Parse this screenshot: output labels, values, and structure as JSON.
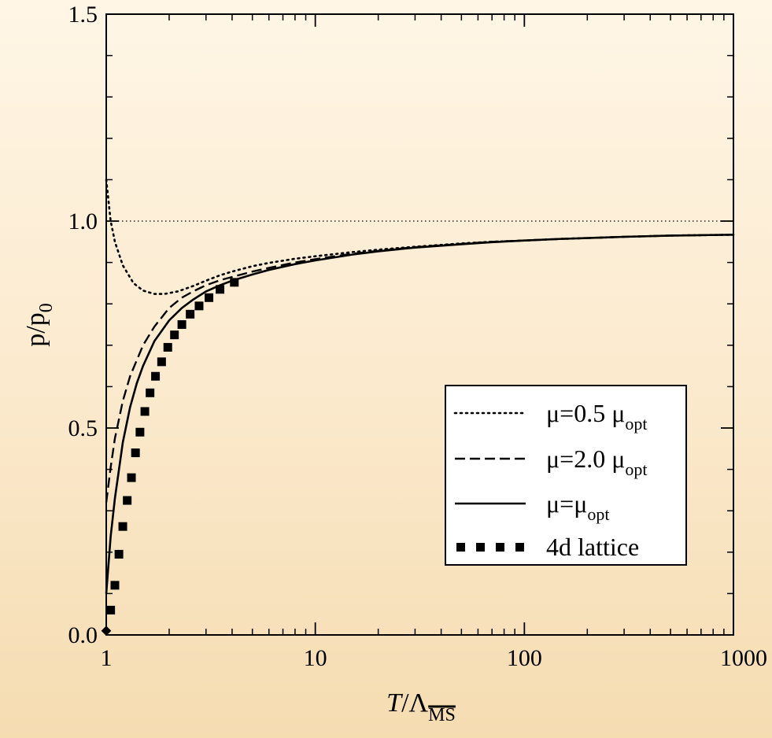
{
  "chart_data": {
    "type": "line",
    "xscale": "log",
    "xlim": [
      1,
      1000
    ],
    "ylim": [
      0.0,
      1.5
    ],
    "xticks": [
      1,
      10,
      100,
      1000
    ],
    "xtick_labels": [
      "1",
      "10",
      "100",
      "1000"
    ],
    "yticks": [
      0.0,
      0.5,
      1.0,
      1.5
    ],
    "ytick_labels": [
      "0.0",
      "0.5",
      "1.0",
      "1.5"
    ],
    "xlabel": {
      "main": "T",
      "sep": "/Λ",
      "sub": "MS"
    },
    "ylabel": {
      "main": "p/p",
      "sub": "0"
    },
    "reference_lines": [
      0.0,
      1.0
    ],
    "legend_position": "lower-right",
    "series": [
      {
        "name": "μ=0.5 μ",
        "name_sub": "opt",
        "style": "dotted",
        "x": [
          1.0,
          1.05,
          1.1,
          1.2,
          1.35,
          1.5,
          1.7,
          1.9,
          2.2,
          2.6,
          3.0,
          3.5,
          4.0,
          5.0,
          6.0,
          8.0,
          10,
          15,
          20,
          30,
          50,
          70,
          100,
          150,
          200,
          300,
          500,
          700,
          1000
        ],
        "y": [
          1.1,
          1.0,
          0.95,
          0.893,
          0.85,
          0.832,
          0.824,
          0.824,
          0.83,
          0.843,
          0.856,
          0.869,
          0.878,
          0.891,
          0.899,
          0.909,
          0.915,
          0.925,
          0.931,
          0.938,
          0.946,
          0.95,
          0.953,
          0.957,
          0.959,
          0.962,
          0.965,
          0.966,
          0.967
        ]
      },
      {
        "name": "μ=2.0 μ",
        "name_sub": "opt",
        "style": "dashed",
        "x": [
          1.0,
          1.05,
          1.1,
          1.2,
          1.3,
          1.5,
          1.7,
          2.0,
          2.3,
          2.6,
          3.0,
          3.5,
          4.0,
          5.0,
          6.0,
          8.0,
          10,
          15,
          20,
          30,
          50,
          70,
          100,
          150,
          200,
          300,
          500,
          700,
          1000
        ],
        "y": [
          0.32,
          0.405,
          0.475,
          0.565,
          0.625,
          0.7,
          0.745,
          0.79,
          0.815,
          0.83,
          0.845,
          0.857,
          0.865,
          0.878,
          0.887,
          0.9,
          0.908,
          0.921,
          0.928,
          0.937,
          0.945,
          0.95,
          0.953,
          0.957,
          0.959,
          0.962,
          0.965,
          0.966,
          0.967
        ]
      },
      {
        "name": "μ=μ",
        "name_sub": "opt",
        "style": "solid",
        "x": [
          1.0,
          1.05,
          1.1,
          1.2,
          1.3,
          1.4,
          1.5,
          1.7,
          2.0,
          2.3,
          2.6,
          3.0,
          3.5,
          4.0,
          5.0,
          6.0,
          8.0,
          10,
          15,
          20,
          30,
          50,
          70,
          100,
          150,
          200,
          300,
          500,
          700,
          1000
        ],
        "y": [
          0.1,
          0.238,
          0.33,
          0.465,
          0.55,
          0.608,
          0.65,
          0.71,
          0.76,
          0.79,
          0.81,
          0.83,
          0.845,
          0.856,
          0.871,
          0.882,
          0.896,
          0.905,
          0.919,
          0.927,
          0.936,
          0.944,
          0.949,
          0.953,
          0.957,
          0.959,
          0.962,
          0.965,
          0.966,
          0.967
        ]
      },
      {
        "name": "4d lattice",
        "style": "markers",
        "x": [
          1.0,
          1.05,
          1.1,
          1.15,
          1.2,
          1.26,
          1.32,
          1.38,
          1.45,
          1.53,
          1.62,
          1.72,
          1.84,
          1.97,
          2.12,
          2.3,
          2.52,
          2.78,
          3.1,
          3.5,
          4.1
        ],
        "y": [
          0.01,
          0.06,
          0.12,
          0.195,
          0.262,
          0.325,
          0.38,
          0.44,
          0.49,
          0.54,
          0.585,
          0.625,
          0.66,
          0.695,
          0.725,
          0.75,
          0.775,
          0.795,
          0.815,
          0.835,
          0.852
        ]
      }
    ]
  }
}
